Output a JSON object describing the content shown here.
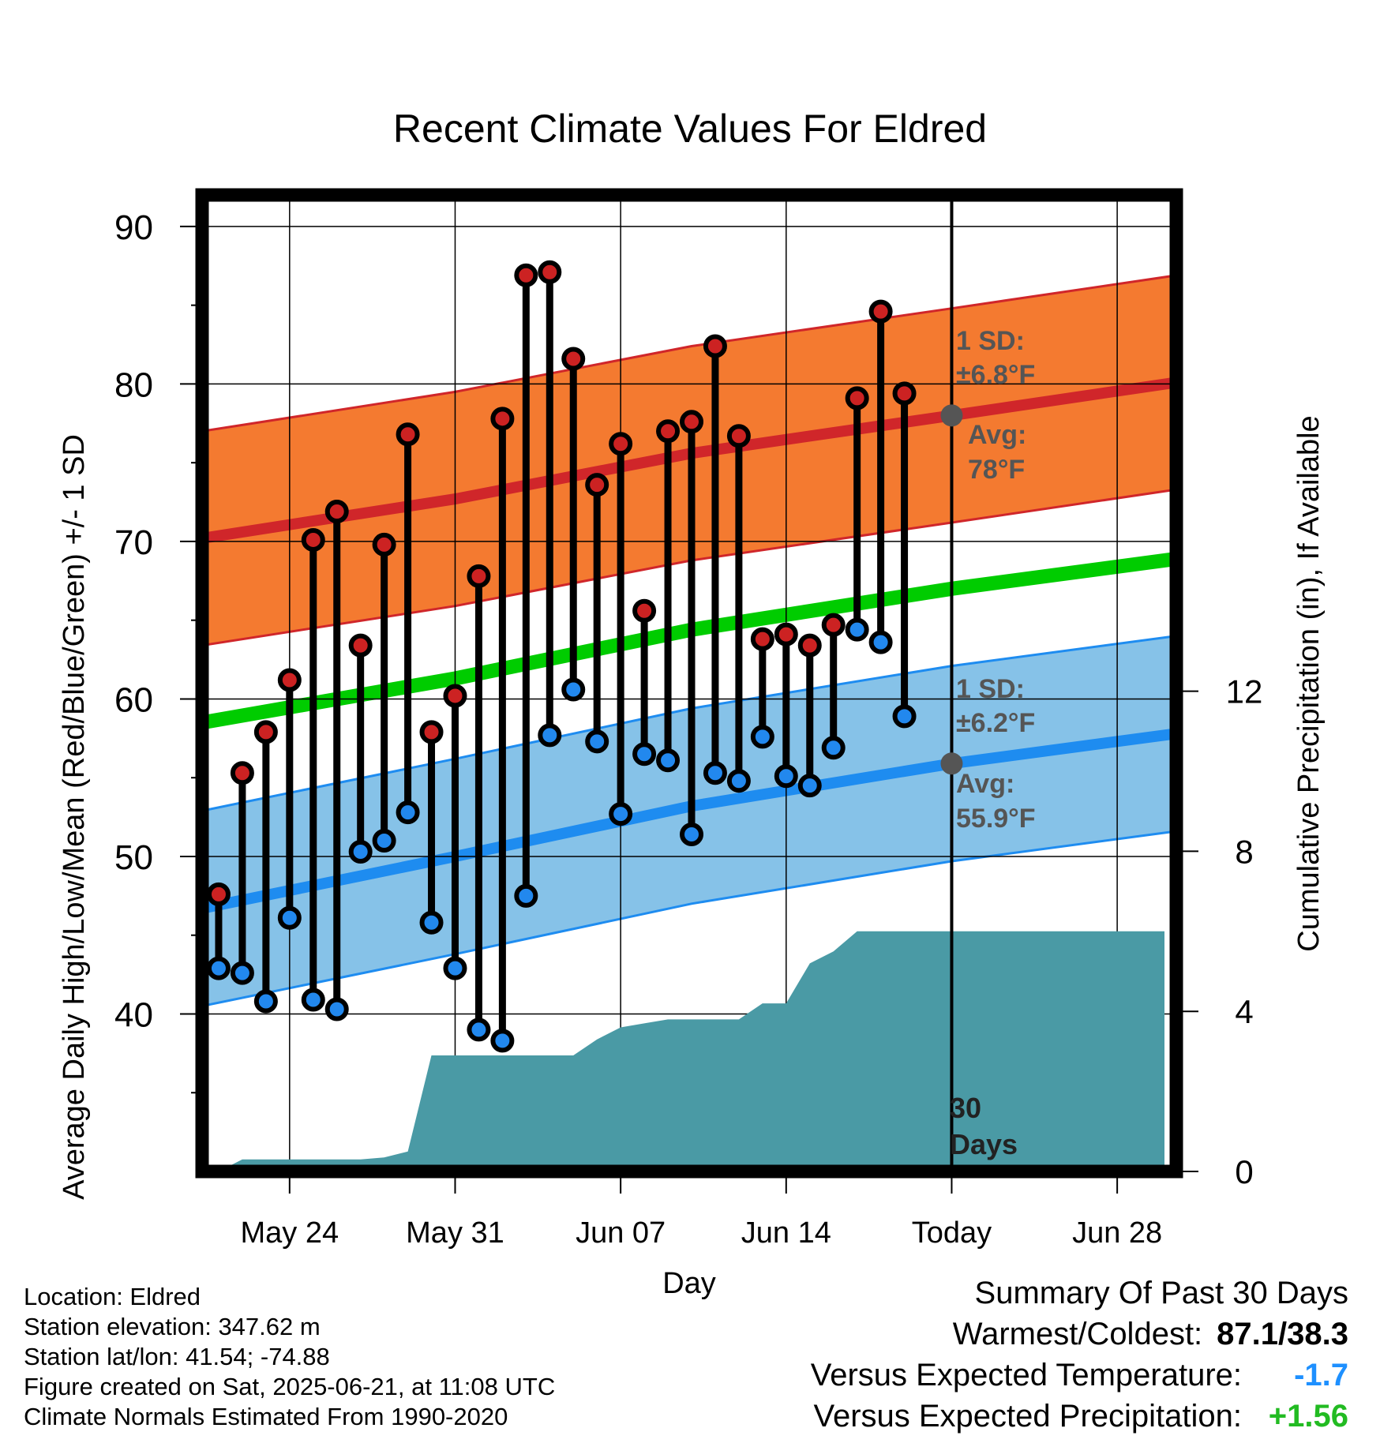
{
  "title": "Recent Climate Values For Eldred",
  "colors": {
    "high_marker": "#cc2222",
    "low_marker": "#2288ee",
    "high_band": "#f47a30",
    "high_avg_line": "#d0262a",
    "low_band": "#86c2e8",
    "low_avg_line": "#1e8cf0",
    "mean_line": "#00cc00",
    "precip_fill": "#4a9aa5",
    "annotation": "#555555",
    "temp_anomaly": "#1e90ff",
    "precip_anomaly": "#22bb22"
  },
  "annotations": {
    "high_sd_line1": "1 SD:",
    "high_sd_line2": "±6.8°F",
    "high_avg_line1": "Avg:",
    "high_avg_line2": "78°F",
    "low_sd_line1": "1 SD:",
    "low_sd_line2": "±6.2°F",
    "low_avg_line1": "Avg:",
    "low_avg_line2": "55.9°F",
    "days_line1": "30",
    "days_line2": "Days"
  },
  "footer": {
    "location": "Location: Eldred",
    "elevation": "Station elevation: 347.62 m",
    "latlon": "Station lat/lon: 41.54; -74.88",
    "created": "Figure created on Sat, 2025-06-21, at 11:08 UTC",
    "normals": "Climate Normals Estimated From 1990-2020"
  },
  "summary": {
    "heading": "Summary Of Past 30 Days",
    "warm_cold_label": "Warmest/Coldest:",
    "warm_cold_value": "87.1/38.3",
    "temp_label": "Versus Expected Temperature:",
    "temp_value": "-1.7",
    "precip_label": "Versus Expected Precipitation:",
    "precip_value": "+1.56"
  },
  "chart_data": {
    "type": "line",
    "title": "Recent Climate Values For Eldred",
    "xlabel": "Day",
    "ylabel": "Average Daily High/Low/Mean (Red/Blue/Green) +/- 1 SD",
    "y2label": "Cumulative Precipitation (in), If Available",
    "x_ticks": [
      "May 24",
      "May 31",
      "Jun 07",
      "Jun 14",
      "Today",
      "Jun 28"
    ],
    "x_tick_days": [
      3,
      10,
      17,
      24,
      31,
      38
    ],
    "xlim": [
      -0.7,
      40.5
    ],
    "ylim": [
      30,
      92
    ],
    "y_ticks": [
      40,
      50,
      60,
      70,
      80,
      90
    ],
    "y2lim": [
      0,
      24.4
    ],
    "y2_ticks": [
      0,
      4,
      8,
      12
    ],
    "today_day": 31,
    "grid": true,
    "days": [
      0,
      1,
      2,
      3,
      4,
      5,
      6,
      7,
      8,
      9,
      10,
      11,
      12,
      13,
      14,
      15,
      16,
      17,
      18,
      19,
      20,
      21,
      22,
      23,
      24,
      25,
      26,
      27,
      28,
      29
    ],
    "daily_high": [
      47.6,
      55.3,
      57.9,
      61.2,
      70.1,
      71.9,
      63.4,
      69.8,
      76.8,
      57.9,
      60.2,
      67.8,
      77.8,
      86.9,
      87.1,
      81.6,
      73.6,
      76.2,
      65.6,
      77.0,
      77.6,
      82.4,
      76.7,
      63.8,
      64.1,
      63.4,
      64.7,
      79.1,
      84.6,
      79.4
    ],
    "daily_low": [
      42.9,
      42.6,
      40.8,
      46.1,
      40.9,
      40.3,
      50.3,
      51.0,
      52.8,
      45.8,
      42.9,
      39.0,
      38.3,
      47.5,
      57.7,
      60.6,
      57.3,
      52.7,
      56.5,
      56.1,
      51.4,
      55.3,
      54.8,
      57.6,
      55.1,
      54.5,
      56.9,
      64.4,
      63.6,
      58.9
    ],
    "normal_high": {
      "day": [
        -0.7,
        10,
        20,
        31,
        40.5
      ],
      "value": [
        70.2,
        72.7,
        75.6,
        78.0,
        80.1
      ]
    },
    "normal_high_sd": 6.8,
    "normal_low": {
      "day": [
        -0.7,
        10,
        20,
        31,
        40.5
      ],
      "value": [
        46.7,
        50.0,
        53.2,
        55.9,
        57.8
      ]
    },
    "normal_low_sd": 6.2,
    "normal_mean": {
      "day": [
        -0.7,
        10,
        20,
        31,
        40.5
      ],
      "value": [
        58.5,
        61.3,
        64.4,
        67.0,
        68.9
      ]
    },
    "cumulative_precip": {
      "day": [
        0,
        1,
        2,
        3,
        4,
        5,
        6,
        7,
        8,
        9,
        10,
        11,
        12,
        13,
        14,
        15,
        16,
        17,
        18,
        19,
        20,
        21,
        22,
        23,
        24,
        25,
        26,
        27,
        28,
        29,
        30,
        31,
        32,
        33,
        34,
        35,
        36,
        37,
        38,
        39,
        40
      ],
      "value": [
        0,
        0.3,
        0.3,
        0.3,
        0.3,
        0.3,
        0.3,
        0.35,
        0.5,
        2.9,
        2.9,
        2.9,
        2.9,
        2.9,
        2.9,
        2.9,
        3.3,
        3.6,
        3.7,
        3.8,
        3.8,
        3.8,
        3.8,
        4.2,
        4.2,
        5.2,
        5.5,
        6.0,
        6.0,
        6.0,
        6.0,
        6.0,
        6.0,
        6.0,
        6.0,
        6.0,
        6.0,
        6.0,
        6.0,
        6.0,
        6.0
      ]
    }
  }
}
